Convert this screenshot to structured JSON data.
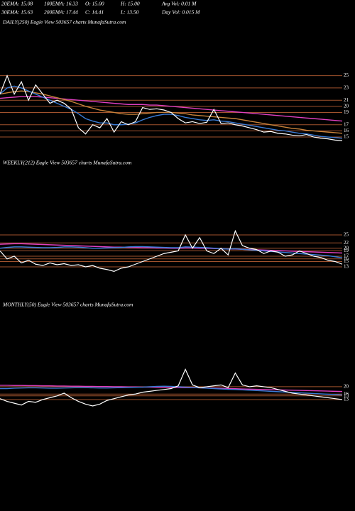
{
  "header": {
    "row1": [
      "20EMA: 15.08",
      "100EMA: 16.33",
      "O: 15.00",
      "H: 15.00",
      "Avg Vol: 0.01 M"
    ],
    "row2": [
      "30EMA: 15.63",
      "200EMA: 17.44",
      "C: 14.41",
      "L: 13.50",
      "Day Vol: 0.015 M"
    ]
  },
  "chart_data": [
    {
      "type": "line",
      "title": "DAILY(250) Eagle  View  503657 charts MunafaSutra.com",
      "ylim": [
        13.5,
        26
      ],
      "yticks": [
        15,
        16,
        17,
        19,
        20,
        21,
        23,
        25
      ],
      "grid": true,
      "grid_color": "#a0522d",
      "series": [
        {
          "color": "#e040c0",
          "values": [
            21.3,
            21.4,
            21.5,
            21.6,
            21.6,
            21.6,
            21.5,
            21.4,
            21.3,
            21.2,
            21.1,
            21,
            20.9,
            20.8,
            20.7,
            20.6,
            20.5,
            20.4,
            20.3,
            20.3,
            20.3,
            20.2,
            20.2,
            20.1,
            20,
            19.9,
            19.8,
            19.7,
            19.6,
            19.5,
            19.4,
            19.3,
            19.2,
            19.1,
            19,
            18.9,
            18.8,
            18.7,
            18.6,
            18.5,
            18.4,
            18.3,
            18.2,
            18.1,
            18,
            17.9,
            17.8,
            17.7,
            17.6
          ]
        },
        {
          "color": "#c8823a",
          "values": [
            22,
            22.2,
            22.4,
            22.5,
            22.4,
            22.2,
            22,
            21.7,
            21.4,
            21.1,
            20.8,
            20.4,
            20,
            19.7,
            19.4,
            19.2,
            19,
            18.8,
            18.7,
            18.7,
            18.8,
            18.9,
            19,
            19,
            19,
            18.9,
            18.8,
            18.6,
            18.5,
            18.4,
            18.3,
            18.2,
            18.1,
            18,
            17.8,
            17.6,
            17.4,
            17.2,
            17,
            16.8,
            16.6,
            16.4,
            16.3,
            16.1,
            16,
            15.9,
            15.8,
            15.7,
            15.6
          ]
        },
        {
          "color": "#3a7bd5",
          "values": [
            22,
            23,
            23.3,
            23,
            22.5,
            22,
            21.5,
            21,
            20.5,
            20,
            19.5,
            18.8,
            18,
            17.6,
            17.3,
            17.3,
            17,
            17,
            17.1,
            17.3,
            17.8,
            18.2,
            18.5,
            18.7,
            18.7,
            18.5,
            18.2,
            18,
            17.8,
            17.7,
            17.8,
            17.6,
            17.5,
            17.3,
            17.1,
            16.9,
            16.7,
            16.5,
            16.3,
            16.1,
            16,
            15.8,
            15.6,
            15.5,
            15.3,
            15.1,
            15,
            14.9,
            14.8
          ]
        },
        {
          "color": "#ffffff",
          "values": [
            22,
            25,
            22,
            24,
            21,
            23.5,
            22,
            20.5,
            21,
            20.5,
            19.5,
            16.5,
            15.5,
            17,
            16.5,
            18,
            15.8,
            17.5,
            17,
            17.5,
            19.8,
            19.5,
            19.6,
            19.4,
            19,
            18,
            17.3,
            17.5,
            17.2,
            17.4,
            19.5,
            17.2,
            17.3,
            17,
            16.8,
            16.5,
            16.2,
            15.8,
            15.9,
            15.6,
            15.5,
            15.3,
            15.2,
            15.4,
            15,
            14.8,
            14.7,
            14.5,
            14.4
          ]
        }
      ]
    },
    {
      "type": "line",
      "title": "WEEKLY(212) Eagle  View  503657 charts MunafaSutra.com",
      "ylim": [
        10,
        27
      ],
      "yticks": [
        13,
        15,
        16,
        17,
        19,
        20,
        22,
        25
      ],
      "grid": true,
      "grid_color": "#a0522d",
      "series": [
        {
          "color": "#e040c0",
          "values": [
            21.5,
            21.6,
            21.7,
            21.7,
            21.6,
            21.5,
            21.4,
            21.3,
            21.2,
            21.1,
            21,
            20.9,
            20.8,
            20.7,
            20.6,
            20.5,
            20.4,
            20.4,
            20.3,
            20.3,
            20.2,
            20.2,
            20.1,
            20.1,
            20,
            20,
            20.1,
            20.1,
            20,
            20,
            19.9,
            19.8,
            19.7,
            19.7,
            19.6,
            19.5,
            19.4,
            19.3,
            19.2,
            19.1,
            19,
            18.9,
            18.8,
            18.7,
            18.6,
            18.5,
            18.4,
            18.3,
            18.2
          ]
        },
        {
          "color": "#3a7bd5",
          "values": [
            20,
            20.3,
            20.5,
            20.5,
            20.4,
            20.3,
            20.2,
            20.2,
            20.3,
            20.5,
            20.5,
            20.4,
            20.2,
            20,
            20,
            20.1,
            20.2,
            20.3,
            20.5,
            20.6,
            20.6,
            20.5,
            20.4,
            20.3,
            20.2,
            20.2,
            20.5,
            20.4,
            20.3,
            20.2,
            20,
            19.8,
            19.7,
            19.8,
            19.6,
            19.4,
            19.2,
            19,
            18.8,
            18.6,
            18.4,
            18.2,
            18,
            17.8,
            17.6,
            17.4,
            17.2,
            16.8,
            16.4
          ]
        },
        {
          "color": "#ffffff",
          "values": [
            19,
            16,
            17,
            14.5,
            15.5,
            14,
            13.5,
            14.5,
            13.8,
            14.2,
            13.5,
            13.8,
            13,
            13.5,
            12.5,
            12,
            11.3,
            12.5,
            13,
            14,
            15,
            16,
            17,
            18,
            18.5,
            19,
            25,
            20,
            24,
            19,
            18,
            20,
            17.5,
            26.5,
            21,
            20,
            19.5,
            18,
            19,
            18.5,
            17,
            17.5,
            19,
            18,
            17,
            16.5,
            15.5,
            15,
            14
          ]
        }
      ]
    },
    {
      "type": "line",
      "title": "MONTHLY(50) Eagle  View  503657 charts MunafaSutra.com",
      "ylim": [
        6,
        32
      ],
      "yticks": [
        13,
        15,
        16,
        20
      ],
      "grid": true,
      "grid_color": "#a0522d",
      "series": [
        {
          "color": "#e040c0",
          "values": [
            20.8,
            20.8,
            20.7,
            20.7,
            20.6,
            20.6,
            20.5,
            20.5,
            20.4,
            20.4,
            20.3,
            20.3,
            20.2,
            20.2,
            20.1,
            20.1,
            20,
            20,
            19.9,
            19.9,
            19.8,
            19.8,
            19.7,
            19.7,
            19.6,
            19.6,
            19.5,
            19.5,
            19.4,
            19.3,
            19.2,
            19.1,
            19,
            18.9,
            18.8,
            18.7,
            18.6,
            18.5,
            18.4,
            18.3,
            18.2,
            18.1,
            18,
            17.9,
            17.8,
            17.7,
            17.6,
            17.5,
            17.4
          ]
        },
        {
          "color": "#3a7bd5",
          "values": [
            19,
            19,
            19.2,
            19.3,
            19.4,
            19.4,
            19.3,
            19.2,
            19.2,
            19.3,
            19.4,
            19.5,
            19.5,
            19.4,
            19.3,
            19.3,
            19.4,
            19.5,
            19.6,
            19.7,
            19.8,
            20,
            20.2,
            20.3,
            20.2,
            20,
            19.8,
            19.6,
            19.4,
            19.2,
            19,
            18.8,
            18.6,
            18.5,
            18.3,
            18.1,
            17.9,
            17.7,
            17.5,
            17.3,
            17.1,
            16.9,
            16.7,
            16.5,
            16.3,
            16.1,
            15.9,
            15.7,
            15.5
          ]
        },
        {
          "color": "#ffffff",
          "values": [
            13.5,
            12,
            11,
            10,
            12,
            11.5,
            13,
            14,
            15,
            16.5,
            14,
            12,
            10.5,
            9.5,
            10.5,
            12.5,
            13.5,
            14.5,
            15.5,
            16,
            17,
            17.5,
            18,
            18.5,
            19,
            20.5,
            29.5,
            21,
            19.5,
            20,
            20.5,
            21,
            19.5,
            27.5,
            21,
            20,
            20.5,
            20,
            19.5,
            18.5,
            17.5,
            16.5,
            16,
            15.5,
            15,
            14.5,
            14,
            13.5,
            13
          ]
        }
      ]
    }
  ]
}
